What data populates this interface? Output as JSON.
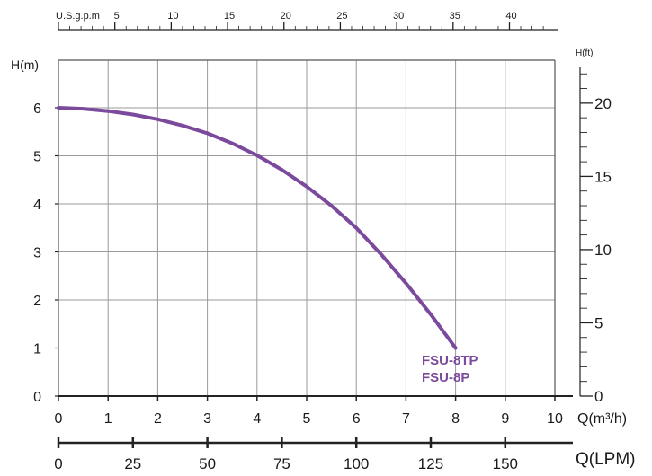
{
  "chart_data": {
    "type": "line",
    "x_unit_label": "Q(m³/h)",
    "y_unit_label": "H(m)",
    "xlim": [
      0,
      10
    ],
    "ylim": [
      0,
      6.25
    ],
    "x_ticks": [
      "0",
      "1",
      "2",
      "3",
      "4",
      "5",
      "6",
      "7",
      "8",
      "9",
      "10"
    ],
    "y_ticks": [
      "0",
      "1",
      "2",
      "3",
      "4",
      "5",
      "6"
    ],
    "grid": true,
    "top_axis": {
      "label": "U.S.g.p.m",
      "ticks": [
        5,
        10,
        15,
        20,
        25,
        30,
        35,
        40
      ],
      "tick_labels": [
        "5",
        "10",
        "15",
        "20",
        "25",
        "30",
        "35",
        "40"
      ]
    },
    "right_axis": {
      "label": "H(ft)",
      "ticks": [
        0,
        5,
        10,
        15,
        20
      ],
      "tick_labels": [
        "0",
        "5",
        "10",
        "15",
        "20"
      ]
    },
    "bottom_axis": {
      "label": "Q(LPM)",
      "ticks": [
        0,
        25,
        50,
        75,
        100,
        125,
        150
      ],
      "tick_labels": [
        "0",
        "25",
        "50",
        "75",
        "100",
        "125",
        "150"
      ]
    },
    "series": [
      {
        "name": "FSU-8TP / FSU-8P",
        "labels": [
          "FSU-8TP",
          "FSU-8P"
        ],
        "color": "#7b4a9c",
        "x": [
          0,
          0.5,
          1,
          1.5,
          2,
          2.5,
          3,
          3.5,
          4,
          4.5,
          5,
          5.5,
          6,
          6.5,
          7,
          7.5,
          8
        ],
        "y": [
          6.0,
          5.98,
          5.93,
          5.86,
          5.76,
          5.63,
          5.47,
          5.26,
          5.01,
          4.71,
          4.36,
          3.96,
          3.5,
          2.95,
          2.35,
          1.7,
          1.0
        ]
      }
    ]
  }
}
